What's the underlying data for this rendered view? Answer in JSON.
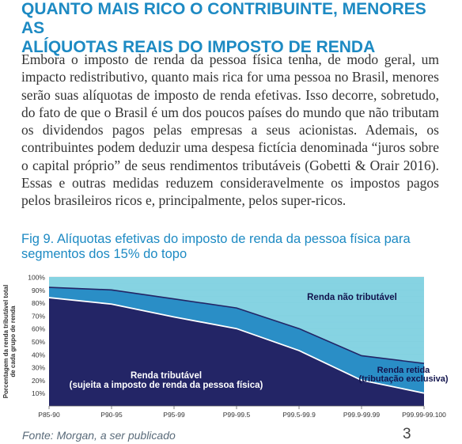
{
  "heading": {
    "line1": "QUANTO MAIS RICO O CONTRIBUINTE, MENORES AS",
    "line2": "ALÍQUOTAS REAIS DO IMPOSTO DE RENDA"
  },
  "body_text": "Embora o imposto de renda da pessoa física tenha, de modo geral, um impacto redistributivo, quanto mais rica for uma pessoa no Brasil, menores serão suas alíquotas de imposto de renda efetivas. Isso decorre, sobretudo, do fato de que o Brasil é um dos poucos países do mundo que não tributam os dividendos pagos pelas empresas a seus acionistas. Ademais, os contribuintes podem deduzir uma despesa fictícia denominada “juros sobre o capital próprio” de seus rendimentos tributáveis (Gobetti & Orair 2016).  Essas e outras medidas reduzem consideravelmente os impostos pagos pelos brasileiros ricos e, principalmente, pelos super-ricos.",
  "figure": {
    "title": "Fig 9.  Alíquotas efetivas do imposto de renda da pessoa física para segmentos dos 15% do topo"
  },
  "chart_data": {
    "type": "area",
    "x": [
      "P85-90",
      "P90-95",
      "P95-99",
      "P99-99.5",
      "P99.5-99.9",
      "P99.9-99.99",
      "P99.99-99.100"
    ],
    "ylabel": "Porcentagem da renda tributável total de cada grupo de renda",
    "ylim": [
      0,
      100
    ],
    "yticks": [
      "10%",
      "20%",
      "30%",
      "40%",
      "50%",
      "60%",
      "70%",
      "80%",
      "90%",
      "100%"
    ],
    "grid": true,
    "series": [
      {
        "name": "Renda tributável (sujeita a imposto de renda da pessoa física)",
        "values": [
          84,
          79,
          69,
          60,
          43,
          20,
          10
        ]
      },
      {
        "name": "Renda retida (tributação exclusiva)",
        "values": [
          8,
          11,
          14,
          16,
          17,
          19,
          23
        ]
      },
      {
        "name": "Renda não tributável",
        "values": [
          8,
          10,
          17,
          24,
          40,
          61,
          67
        ]
      }
    ],
    "annotations": [
      "Renda não tributável",
      "Renda tributável",
      "(sujeita a imposto de renda da pessoa física)",
      "Renda retida",
      "(tributação exclusiva)"
    ],
    "colors": {
      "taxable": "#232566",
      "withheld": "#2a8ec6",
      "non_taxable": "#7ccfe0",
      "boundary": "#ffffff"
    }
  },
  "source": "Fonte: Morgan, a ser publicado",
  "page_number": "3"
}
